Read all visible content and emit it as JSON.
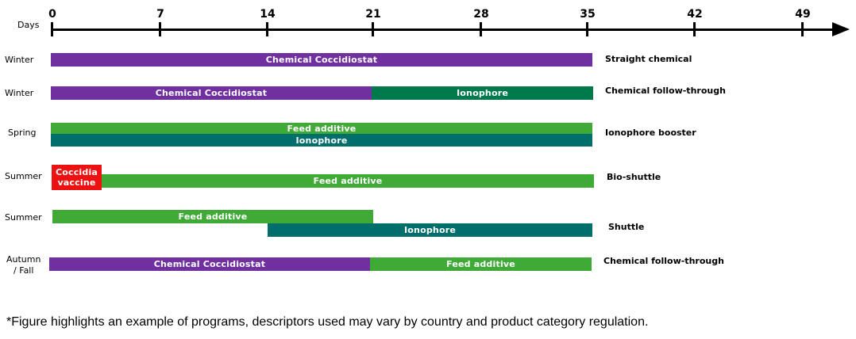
{
  "axis": {
    "label": "Days",
    "ticks": [
      "0",
      "7",
      "14",
      "21",
      "28",
      "35",
      "42",
      "49"
    ]
  },
  "colors": {
    "chemical": "#7030a0",
    "ionophore_dark_green": "#007a4d",
    "ionophore_teal": "#006e6a",
    "feed_additive": "#3faa35",
    "vaccine": "#ee1111"
  },
  "rows": [
    {
      "season": "Winter",
      "program": "Straight chemical",
      "bars": [
        {
          "label": "Chemical Coccidiostat"
        }
      ]
    },
    {
      "season": "Winter",
      "program": "Chemical follow-through",
      "bars": [
        {
          "label": "Chemical Coccidiostat"
        },
        {
          "label": "Ionophore"
        }
      ]
    },
    {
      "season": "Spring",
      "program": "Ionophore booster",
      "bars": [
        {
          "label": "Feed additive"
        },
        {
          "label": "Ionophore"
        }
      ]
    },
    {
      "season": "Summer",
      "program": "Bio-shuttle",
      "bars": [
        {
          "label": "Coccidia\nvaccine"
        },
        {
          "label": "Feed additive"
        }
      ]
    },
    {
      "season": "Summer",
      "program": "Shuttle",
      "bars": [
        {
          "label": "Feed additive"
        },
        {
          "label": "Ionophore"
        }
      ]
    },
    {
      "season": "Autumn\n/ Fall",
      "program": "Chemical follow-through",
      "bars": [
        {
          "label": "Chemical Coccidiostat"
        },
        {
          "label": "Feed additive"
        }
      ]
    }
  ],
  "footnote": "*Figure highlights an example of programs, descriptors used may vary by country and product  category regulation."
}
